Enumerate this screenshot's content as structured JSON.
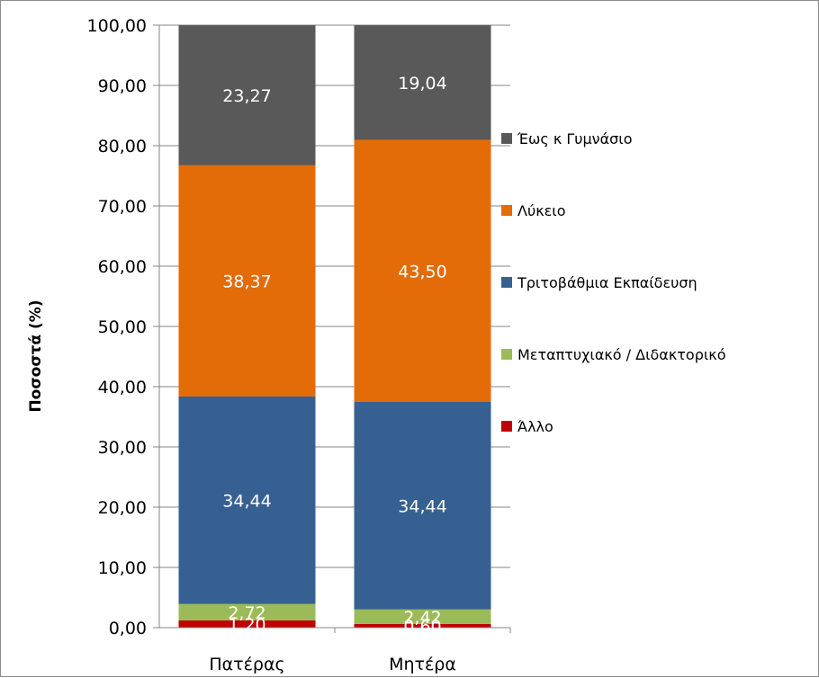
{
  "chart_data": {
    "type": "bar",
    "stacked": true,
    "ylabel": "Ποσοστά (%)",
    "xlabel": "",
    "ylim": [
      0,
      100
    ],
    "ytick_step": 10,
    "yticks": [
      "0,00",
      "10,00",
      "20,00",
      "30,00",
      "40,00",
      "50,00",
      "60,00",
      "70,00",
      "80,00",
      "90,00",
      "100,00"
    ],
    "categories": [
      "Πατέρας",
      "Μητέρα"
    ],
    "series": [
      {
        "name": "Άλλο",
        "color": "#c00000",
        "values": [
          1.2,
          0.6
        ],
        "labels": [
          "1,20",
          "0,60"
        ]
      },
      {
        "name": "Μεταπτυχιακό / Διδακτορικό",
        "color": "#9bbb59",
        "values": [
          2.72,
          2.42
        ],
        "labels": [
          "2,72",
          "2,42"
        ]
      },
      {
        "name": "Τριτοβάθμια Εκπαίδευση",
        "color": "#376092",
        "values": [
          34.44,
          34.44
        ],
        "labels": [
          "34,44",
          "34,44"
        ]
      },
      {
        "name": "Λύκειο",
        "color": "#e36c09",
        "values": [
          38.37,
          43.5
        ],
        "labels": [
          "38,37",
          "43,50"
        ]
      },
      {
        "name": "Έως κ Γυμνάσιο",
        "color": "#595959",
        "values": [
          23.27,
          19.04
        ],
        "labels": [
          "23,27",
          "19,04"
        ]
      }
    ],
    "legend_order": [
      "Έως κ Γυμνάσιο",
      "Λύκειο",
      "Τριτοβάθμια Εκπαίδευση",
      "Μεταπτυχιακό / Διδακτορικό",
      "Άλλο"
    ],
    "legend_position": "right",
    "grid": true
  }
}
